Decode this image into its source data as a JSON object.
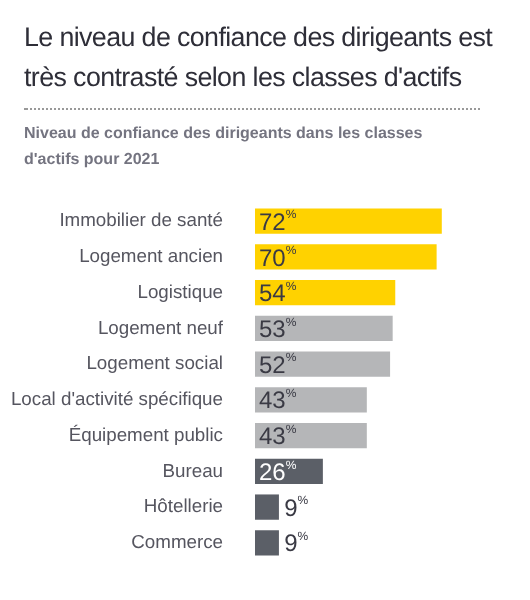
{
  "chart_data": {
    "type": "bar",
    "orientation": "horizontal",
    "title": "Le niveau de confiance des dirigeants est très contrasté selon les classes d'actifs",
    "subtitle": "Niveau de confiance des dirigeants dans les classes d'actifs pour 2021",
    "categories": [
      "Immobilier de santé",
      "Logement ancien",
      "Logistique",
      "Logement neuf",
      "Logement social",
      "Local d'activité spécifique",
      "Équipement public",
      "Bureau",
      "Hôtellerie",
      "Commerce"
    ],
    "values": [
      72,
      70,
      54,
      53,
      52,
      43,
      43,
      26,
      9,
      9
    ],
    "colors": [
      "#ffd200",
      "#ffd200",
      "#ffd200",
      "#b5b6b8",
      "#b5b6b8",
      "#b5b6b8",
      "#b5b6b8",
      "#5b5f67",
      "#5b5f67",
      "#5b5f67"
    ],
    "value_labels": [
      "72%",
      "70%",
      "54%",
      "53%",
      "52%",
      "43%",
      "43%",
      "26%",
      "9%",
      "9%"
    ],
    "legend": false
  }
}
